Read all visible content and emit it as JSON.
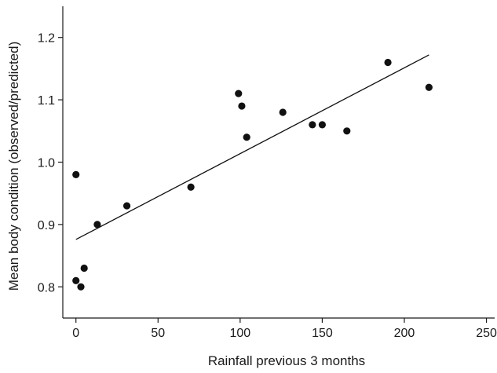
{
  "chart_data": {
    "type": "scatter",
    "title": "",
    "xlabel": "Rainfall previous 3 months",
    "ylabel": "Mean body condition (observed/predicted)",
    "xlim": [
      -8,
      255
    ],
    "ylim": [
      0.75,
      1.25
    ],
    "x_ticks": [
      0,
      50,
      100,
      150,
      200,
      250
    ],
    "x_tick_labels": [
      "0",
      "50",
      "100",
      "150",
      "200",
      "250"
    ],
    "y_ticks": [
      0.8,
      0.9,
      1.0,
      1.1,
      1.2
    ],
    "y_tick_labels": [
      "0.8",
      "0.9",
      "1.0",
      "1.1",
      "1.2"
    ],
    "grid": false,
    "legend": "none",
    "series": [
      {
        "points": [
          {
            "x": 0,
            "y": 0.98
          },
          {
            "x": 0,
            "y": 0.81
          },
          {
            "x": 3,
            "y": 0.8
          },
          {
            "x": 5,
            "y": 0.83
          },
          {
            "x": 13,
            "y": 0.9
          },
          {
            "x": 31,
            "y": 0.93
          },
          {
            "x": 70,
            "y": 0.96
          },
          {
            "x": 99,
            "y": 1.11
          },
          {
            "x": 101,
            "y": 1.09
          },
          {
            "x": 104,
            "y": 1.04
          },
          {
            "x": 126,
            "y": 1.08
          },
          {
            "x": 144,
            "y": 1.06
          },
          {
            "x": 150,
            "y": 1.06
          },
          {
            "x": 165,
            "y": 1.05
          },
          {
            "x": 190,
            "y": 1.16
          },
          {
            "x": 215,
            "y": 1.12
          }
        ]
      }
    ],
    "trendline": {
      "type": "linear",
      "points": [
        {
          "x": 0,
          "y": 0.876
        },
        {
          "x": 215,
          "y": 1.172
        }
      ]
    }
  }
}
